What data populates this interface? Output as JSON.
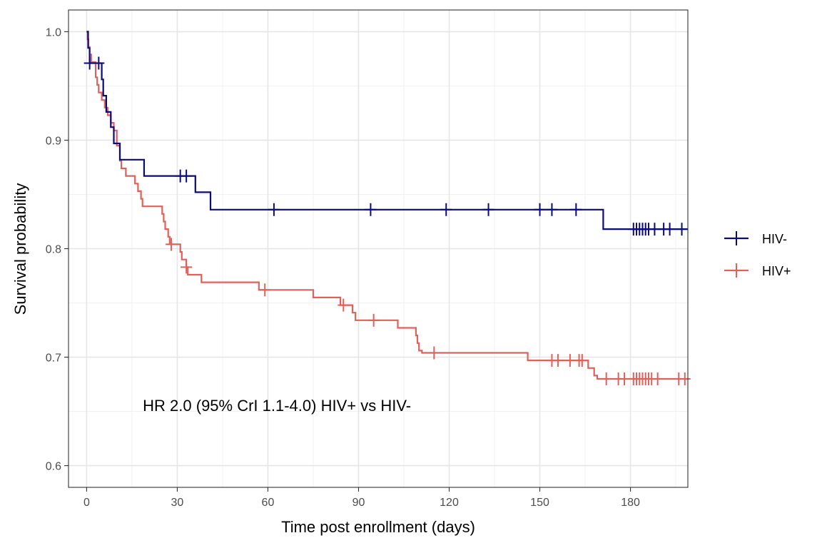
{
  "chart_data": {
    "type": "line",
    "subtype": "kaplan-meier step curve with censor marks",
    "xlabel": "Time post enrollment (days)",
    "ylabel": "Survival probability",
    "xlim": [
      -6,
      199
    ],
    "ylim": [
      0.58,
      1.02
    ],
    "x_ticks": [
      0,
      30,
      60,
      90,
      120,
      150,
      180
    ],
    "y_ticks": [
      0.6,
      0.7,
      0.8,
      0.9,
      1.0
    ],
    "y_tick_labels": [
      "0.6",
      "0.7",
      "0.8",
      "0.9",
      "1.0"
    ],
    "grid": true,
    "legend_position": "right",
    "annotation": "HR 2.0 (95% CrI 1.1-4.0) HIV+ vs HIV-",
    "series": [
      {
        "name": "HIV-",
        "color": "#0b0b7a",
        "steps": [
          [
            0,
            1.0
          ],
          [
            0.5,
            0.985
          ],
          [
            1,
            0.971
          ],
          [
            5,
            0.956
          ],
          [
            5.5,
            0.941
          ],
          [
            6.5,
            0.926
          ],
          [
            8,
            0.912
          ],
          [
            9,
            0.897
          ],
          [
            11,
            0.882
          ],
          [
            19,
            0.867
          ],
          [
            36,
            0.852
          ],
          [
            41,
            0.836
          ],
          [
            171,
            0.818
          ],
          [
            199,
            0.818
          ]
        ],
        "censor_times": [
          1,
          4,
          31,
          33,
          62,
          94,
          119,
          133,
          150,
          154,
          162,
          181,
          182,
          183,
          184,
          185,
          186,
          188,
          191,
          193,
          197
        ]
      },
      {
        "name": "HIV+",
        "color": "#e0605a",
        "steps": [
          [
            0,
            1.0
          ],
          [
            0.3,
            0.993
          ],
          [
            0.6,
            0.986
          ],
          [
            1,
            0.979
          ],
          [
            1.5,
            0.972
          ],
          [
            3,
            0.958
          ],
          [
            3.5,
            0.951
          ],
          [
            4,
            0.944
          ],
          [
            5,
            0.937
          ],
          [
            6,
            0.93
          ],
          [
            7,
            0.923
          ],
          [
            8,
            0.916
          ],
          [
            9,
            0.909
          ],
          [
            10,
            0.895
          ],
          [
            11,
            0.881
          ],
          [
            11.5,
            0.874
          ],
          [
            13,
            0.867
          ],
          [
            16,
            0.86
          ],
          [
            17,
            0.853
          ],
          [
            18,
            0.846
          ],
          [
            18.5,
            0.839
          ],
          [
            25,
            0.832
          ],
          [
            25.5,
            0.825
          ],
          [
            26,
            0.818
          ],
          [
            27,
            0.811
          ],
          [
            27.5,
            0.804
          ],
          [
            31,
            0.797
          ],
          [
            31.5,
            0.79
          ],
          [
            33,
            0.783
          ],
          [
            33.5,
            0.776
          ],
          [
            38,
            0.769
          ],
          [
            57,
            0.762
          ],
          [
            75,
            0.755
          ],
          [
            84,
            0.748
          ],
          [
            88,
            0.741
          ],
          [
            89,
            0.734
          ],
          [
            103,
            0.727
          ],
          [
            109,
            0.72
          ],
          [
            109.5,
            0.713
          ],
          [
            110,
            0.706
          ],
          [
            111,
            0.704
          ],
          [
            146,
            0.697
          ],
          [
            166,
            0.69
          ],
          [
            168,
            0.683
          ],
          [
            169,
            0.68
          ],
          [
            199,
            0.68
          ]
        ],
        "censor_times": [
          28,
          33,
          59,
          85,
          95,
          115,
          154,
          156,
          160,
          163,
          164,
          172,
          176,
          178,
          181,
          182,
          183,
          184,
          185,
          186,
          187,
          189,
          196,
          198
        ]
      }
    ]
  }
}
